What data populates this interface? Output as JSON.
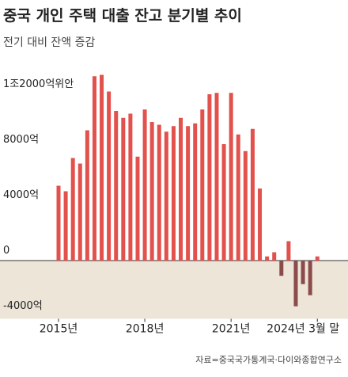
{
  "chart_data": {
    "type": "bar",
    "title": "중국 개인 주택 대출 잔고 분기별 추이",
    "subtitle": "전기 대비 잔액 증감",
    "source": "자료=중국국가통계국·다이와종합연구소",
    "categories": [
      "2015년",
      null,
      null,
      null,
      null,
      null,
      null,
      null,
      null,
      null,
      null,
      null,
      "2018년",
      null,
      null,
      null,
      null,
      null,
      null,
      null,
      null,
      null,
      null,
      null,
      "2021년",
      null,
      null,
      null,
      null,
      null,
      null,
      null,
      null,
      null,
      null,
      null,
      "2024년 3월 말"
    ],
    "values": [
      5400,
      5000,
      7400,
      7000,
      9400,
      13300,
      13400,
      12200,
      10800,
      10300,
      10600,
      7500,
      10900,
      10000,
      9800,
      9300,
      9700,
      10300,
      9700,
      9900,
      10900,
      12000,
      12100,
      8400,
      12100,
      9100,
      7900,
      9500,
      5200,
      300,
      600,
      -1100,
      1400,
      -3300,
      -1700,
      -2500,
      300
    ],
    "color": "#e2514c",
    "negative_color": "#8c4b4b",
    "ylim": [
      -4200,
      13800
    ],
    "yticks": [
      {
        "value": -4000,
        "label": "-4000억"
      },
      0,
      {
        "value": 4000,
        "label": "4000억"
      },
      {
        "value": 8000,
        "label": "8000억"
      },
      {
        "value": 12000,
        "label": "1조2000억위안"
      }
    ],
    "grid": false
  }
}
